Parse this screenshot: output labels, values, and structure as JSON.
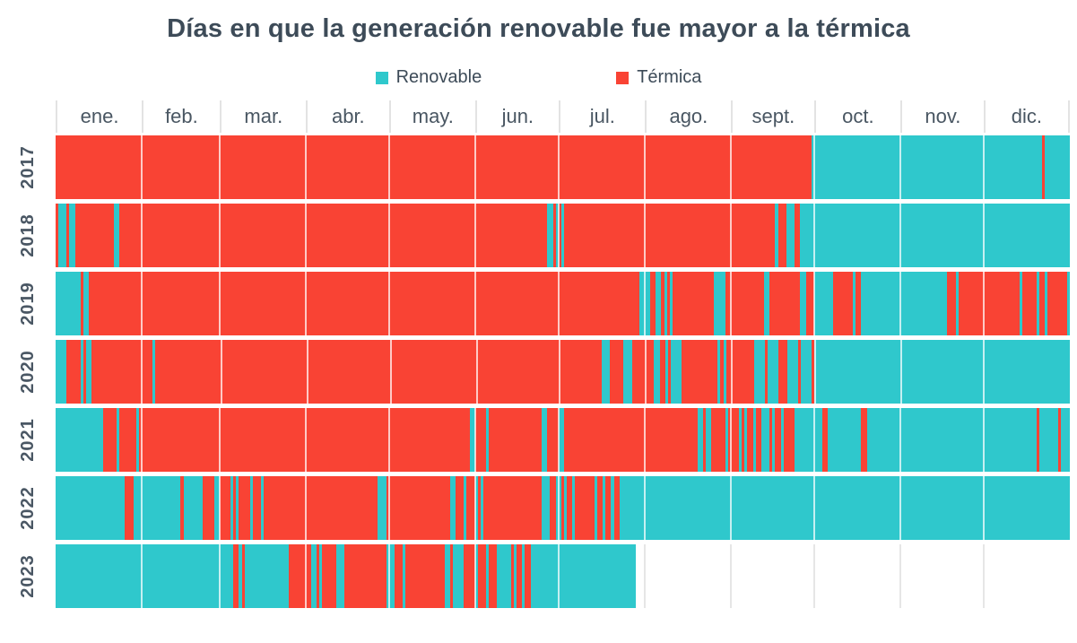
{
  "chart_data": {
    "type": "heatmap",
    "title": "Días en que la generación renovable fue mayor a la térmica",
    "unit": "1 cell = 1 day",
    "colors": {
      "R": "#f94334",
      "T": "#2fc8cc"
    },
    "legend": [
      {
        "key": "T",
        "label": "Renovable"
      },
      {
        "key": "R",
        "label": "Térmica"
      }
    ],
    "months": [
      {
        "label": "ene.",
        "days": 31
      },
      {
        "label": "feb.",
        "days": 28
      },
      {
        "label": "mar.",
        "days": 31
      },
      {
        "label": "abr.",
        "days": 30
      },
      {
        "label": "may.",
        "days": 31
      },
      {
        "label": "jun.",
        "days": 30
      },
      {
        "label": "jul.",
        "days": 31
      },
      {
        "label": "ago.",
        "days": 31
      },
      {
        "label": "sept.",
        "days": 30
      },
      {
        "label": "oct.",
        "days": 31
      },
      {
        "label": "nov.",
        "days": 30
      },
      {
        "label": "dic.",
        "days": 31
      }
    ],
    "rows": [
      {
        "year": "2017",
        "total_days": 365,
        "runs": [
          [
            "R",
            272
          ],
          [
            "T",
            83
          ],
          [
            "R",
            1
          ],
          [
            "T",
            9
          ]
        ]
      },
      {
        "year": "2018",
        "total_days": 365,
        "runs": [
          [
            "R",
            1
          ],
          [
            "T",
            3
          ],
          [
            "R",
            1
          ],
          [
            "T",
            2
          ],
          [
            "R",
            14
          ],
          [
            "T",
            2
          ],
          [
            "R",
            154
          ],
          [
            "T",
            2
          ],
          [
            "R",
            1
          ],
          [
            "T",
            1
          ],
          [
            "R",
            1
          ],
          [
            "T",
            1
          ],
          [
            "R",
            76
          ],
          [
            "T",
            1
          ],
          [
            "R",
            3
          ],
          [
            "T",
            3
          ],
          [
            "R",
            2
          ],
          [
            "T",
            97
          ]
        ]
      },
      {
        "year": "2019",
        "total_days": 365,
        "runs": [
          [
            "T",
            9
          ],
          [
            "R",
            1
          ],
          [
            "T",
            2
          ],
          [
            "R",
            198
          ],
          [
            "T",
            4
          ],
          [
            "R",
            2
          ],
          [
            "T",
            2
          ],
          [
            "R",
            1
          ],
          [
            "T",
            1
          ],
          [
            "R",
            1
          ],
          [
            "T",
            1
          ],
          [
            "R",
            15
          ],
          [
            "T",
            4
          ],
          [
            "R",
            14
          ],
          [
            "T",
            2
          ],
          [
            "R",
            11
          ],
          [
            "T",
            2
          ],
          [
            "R",
            3
          ],
          [
            "T",
            7
          ],
          [
            "R",
            7
          ],
          [
            "T",
            1
          ],
          [
            "R",
            2
          ],
          [
            "T",
            31
          ],
          [
            "R",
            3
          ],
          [
            "T",
            1
          ],
          [
            "R",
            22
          ],
          [
            "T",
            1
          ],
          [
            "R",
            5
          ],
          [
            "T",
            1
          ],
          [
            "R",
            2
          ],
          [
            "T",
            1
          ],
          [
            "R",
            7
          ],
          [
            "T",
            1
          ]
        ]
      },
      {
        "year": "2020",
        "total_days": 366,
        "runs": [
          [
            "T",
            4
          ],
          [
            "R",
            5
          ],
          [
            "T",
            1
          ],
          [
            "R",
            1
          ],
          [
            "T",
            2
          ],
          [
            "R",
            22
          ],
          [
            "T",
            1
          ],
          [
            "R",
            161
          ],
          [
            "T",
            3
          ],
          [
            "R",
            5
          ],
          [
            "T",
            3
          ],
          [
            "R",
            8
          ],
          [
            "T",
            2
          ],
          [
            "R",
            2
          ],
          [
            "T",
            1
          ],
          [
            "R",
            1
          ],
          [
            "T",
            4
          ],
          [
            "R",
            13
          ],
          [
            "T",
            1
          ],
          [
            "R",
            1
          ],
          [
            "T",
            1
          ],
          [
            "R",
            10
          ],
          [
            "T",
            4
          ],
          [
            "R",
            1
          ],
          [
            "T",
            4
          ],
          [
            "R",
            3
          ],
          [
            "T",
            4
          ],
          [
            "R",
            1
          ],
          [
            "T",
            4
          ],
          [
            "R",
            1
          ],
          [
            "T",
            92
          ]
        ]
      },
      {
        "year": "2021",
        "total_days": 365,
        "runs": [
          [
            "T",
            17
          ],
          [
            "R",
            5
          ],
          [
            "T",
            1
          ],
          [
            "R",
            6
          ],
          [
            "T",
            1
          ],
          [
            "R",
            119
          ],
          [
            "T",
            2
          ],
          [
            "R",
            4
          ],
          [
            "T",
            1
          ],
          [
            "R",
            19
          ],
          [
            "T",
            2
          ],
          [
            "R",
            4
          ],
          [
            "T",
            2
          ],
          [
            "R",
            48
          ],
          [
            "T",
            2
          ],
          [
            "R",
            1
          ],
          [
            "T",
            2
          ],
          [
            "R",
            5
          ],
          [
            "T",
            1
          ],
          [
            "R",
            4
          ],
          [
            "T",
            1
          ],
          [
            "R",
            1
          ],
          [
            "T",
            1
          ],
          [
            "R",
            2
          ],
          [
            "T",
            1
          ],
          [
            "R",
            2
          ],
          [
            "T",
            3
          ],
          [
            "R",
            1
          ],
          [
            "T",
            1
          ],
          [
            "R",
            2
          ],
          [
            "T",
            1
          ],
          [
            "R",
            4
          ],
          [
            "T",
            10
          ],
          [
            "R",
            2
          ],
          [
            "T",
            12
          ],
          [
            "R",
            2
          ],
          [
            "T",
            61
          ],
          [
            "R",
            1
          ],
          [
            "T",
            7
          ],
          [
            "R",
            1
          ],
          [
            "T",
            3
          ]
        ]
      },
      {
        "year": "2022",
        "total_days": 365,
        "runs": [
          [
            "T",
            25
          ],
          [
            "R",
            3
          ],
          [
            "T",
            17
          ],
          [
            "R",
            1
          ],
          [
            "T",
            7
          ],
          [
            "R",
            4
          ],
          [
            "T",
            2
          ],
          [
            "R",
            4
          ],
          [
            "T",
            1
          ],
          [
            "R",
            1
          ],
          [
            "T",
            1
          ],
          [
            "R",
            4
          ],
          [
            "T",
            1
          ],
          [
            "R",
            3
          ],
          [
            "T",
            1
          ],
          [
            "R",
            41
          ],
          [
            "T",
            3
          ],
          [
            "R",
            23
          ],
          [
            "T",
            2
          ],
          [
            "R",
            3
          ],
          [
            "T",
            1
          ],
          [
            "R",
            3
          ],
          [
            "T",
            1
          ],
          [
            "R",
            1
          ],
          [
            "T",
            1
          ],
          [
            "R",
            21
          ],
          [
            "T",
            3
          ],
          [
            "R",
            2
          ],
          [
            "T",
            2
          ],
          [
            "R",
            1
          ],
          [
            "T",
            1
          ],
          [
            "R",
            2
          ],
          [
            "T",
            1
          ],
          [
            "R",
            7
          ],
          [
            "T",
            1
          ],
          [
            "R",
            2
          ],
          [
            "T",
            1
          ],
          [
            "R",
            2
          ],
          [
            "T",
            1
          ],
          [
            "R",
            2
          ],
          [
            "T",
            162
          ]
        ]
      },
      {
        "year": "2023",
        "total_days": 365,
        "runs": [
          [
            "T",
            64
          ],
          [
            "R",
            2
          ],
          [
            "T",
            1
          ],
          [
            "R",
            1
          ],
          [
            "T",
            16
          ],
          [
            "R",
            8
          ],
          [
            "T",
            2
          ],
          [
            "R",
            1
          ],
          [
            "T",
            1
          ],
          [
            "R",
            5
          ],
          [
            "T",
            3
          ],
          [
            "R",
            15
          ],
          [
            "T",
            3
          ],
          [
            "R",
            3
          ],
          [
            "T",
            1
          ],
          [
            "R",
            14
          ],
          [
            "T",
            2
          ],
          [
            "R",
            1
          ],
          [
            "T",
            4
          ],
          [
            "R",
            4
          ],
          [
            "T",
            1
          ],
          [
            "R",
            3
          ],
          [
            "T",
            1
          ],
          [
            "R",
            3
          ],
          [
            "T",
            5
          ],
          [
            "R",
            1
          ],
          [
            "T",
            1
          ],
          [
            "R",
            2
          ],
          [
            "T",
            1
          ],
          [
            "R",
            2
          ],
          [
            "T",
            38
          ]
        ]
      }
    ],
    "layout": {
      "gridlines": "month boundaries",
      "legend_position": "top-center",
      "row_order_top_to_bottom": [
        "2017",
        "2018",
        "2019",
        "2020",
        "2021",
        "2022",
        "2023"
      ],
      "note_2023": "data ends in late July"
    }
  }
}
